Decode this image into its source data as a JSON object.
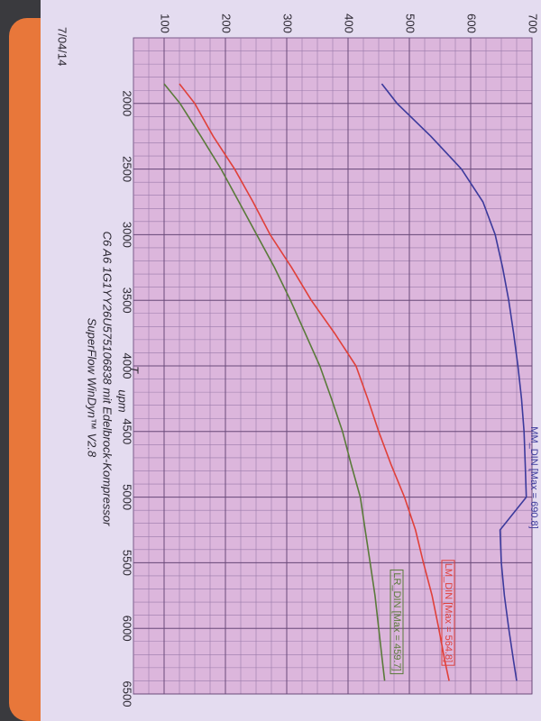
{
  "chart_data": {
    "type": "line",
    "date": "7/04/14",
    "title": "C6 A6 1G1YY26U575106838 mit Edelbrock-Kompressor",
    "subtitle": "SuperFlow WinDyn™ V2.8",
    "x_label": "upm",
    "x_symbol": "T",
    "x": [
      1850,
      2000,
      2250,
      2500,
      2750,
      3000,
      3250,
      3500,
      3750,
      4000,
      4250,
      4500,
      4750,
      5000,
      5250,
      5500,
      5750,
      6000,
      6250,
      6400
    ],
    "xlim": [
      1500,
      6500
    ],
    "xticks": [
      2000,
      2500,
      3000,
      3500,
      4000,
      4500,
      5000,
      5500,
      6000,
      6500
    ],
    "ylim": [
      50,
      700
    ],
    "yticks": [
      100,
      200,
      300,
      400,
      500,
      600,
      700
    ],
    "grid": true,
    "series": [
      {
        "name": "MM_DIN [Max = 690.8]",
        "color": "#3c3a9c",
        "values": [
          455,
          480,
          535,
          585,
          620,
          640,
          652,
          662,
          670,
          677,
          683,
          687,
          689,
          690.8,
          648,
          650,
          655,
          662,
          670,
          675
        ]
      },
      {
        "name": "LM_DIN [Max = 564.8]",
        "color": "#e0403a",
        "values": [
          125,
          150,
          180,
          215,
          245,
          273,
          308,
          340,
          378,
          413,
          432,
          450,
          470,
          492,
          510,
          523,
          537,
          548,
          558,
          564.8
        ]
      },
      {
        "name": "LR_DIN [Max = 459.7]",
        "color": "#5a7a3a",
        "values": [
          100,
          126,
          160,
          193,
          222,
          251,
          280,
          306,
          330,
          354,
          373,
          391,
          405,
          420,
          428,
          436,
          444,
          450,
          456,
          459.7
        ]
      }
    ]
  }
}
